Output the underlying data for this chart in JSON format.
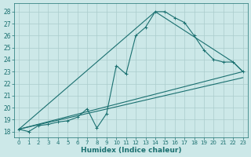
{
  "xlabel": "Humidex (Indice chaleur)",
  "background_color": "#cce8e8",
  "grid_color": "#aacccc",
  "line_color": "#1a7070",
  "xlim": [
    -0.5,
    23.5
  ],
  "ylim": [
    17.5,
    28.7
  ],
  "xticks": [
    0,
    1,
    2,
    3,
    4,
    5,
    6,
    7,
    8,
    9,
    10,
    11,
    12,
    13,
    14,
    15,
    16,
    17,
    18,
    19,
    20,
    21,
    22,
    23
  ],
  "yticks": [
    18,
    19,
    20,
    21,
    22,
    23,
    24,
    25,
    26,
    27,
    28
  ],
  "line1_x": [
    0,
    1,
    2,
    3,
    4,
    5,
    6,
    7,
    8,
    9,
    10,
    11,
    12,
    13,
    14,
    15,
    16,
    17,
    18,
    19,
    20,
    21,
    22,
    23
  ],
  "line1_y": [
    18.2,
    18.0,
    18.5,
    18.6,
    18.8,
    18.9,
    19.2,
    19.9,
    18.3,
    19.5,
    23.5,
    22.8,
    26.0,
    26.7,
    28.0,
    28.0,
    27.5,
    27.1,
    26.0,
    24.8,
    24.0,
    23.8,
    23.8,
    23.0
  ],
  "line2_x": [
    0,
    14,
    22,
    23
  ],
  "line2_y": [
    18.2,
    28.0,
    23.8,
    23.0
  ],
  "line3_x": [
    0,
    23
  ],
  "line3_y": [
    18.2,
    22.5
  ],
  "line4_x": [
    0,
    23
  ],
  "line4_y": [
    18.2,
    23.0
  ],
  "xtick_fontsize": 5,
  "ytick_fontsize": 5.5,
  "xlabel_fontsize": 6.5
}
